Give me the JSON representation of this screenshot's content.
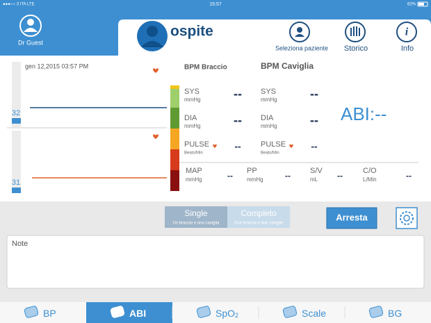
{
  "status_bar": {
    "carrier": "●●●○○ 3 ITA  LTE",
    "time": "15:57",
    "battery": "62%"
  },
  "user": {
    "name": "Dr Guest"
  },
  "patient": {
    "name": "ospite"
  },
  "toolbar": [
    {
      "label": "Seleziona paziente"
    },
    {
      "label": "Storico"
    },
    {
      "label": "Info"
    }
  ],
  "graph": {
    "timestamp": "gen 12,2015 03:57 PM",
    "arm_level": 32,
    "ankle_level": 31
  },
  "readings": {
    "columns": [
      "BPM Braccio",
      "BPM Caviglia"
    ],
    "rows": [
      {
        "label": "SYS",
        "unit": "mmHg",
        "values": [
          "--",
          "--"
        ]
      },
      {
        "label": "DIA",
        "unit": "mmHg",
        "values": [
          "--",
          "--"
        ]
      },
      {
        "label": "PULSE",
        "unit": "Beats/Min",
        "values": [
          "--",
          "--"
        ]
      }
    ],
    "abi": "ABI:--",
    "extra": [
      {
        "label": "MAP",
        "unit": "mmHg",
        "value": "--"
      },
      {
        "label": "PP",
        "unit": "mmHg",
        "value": "--"
      },
      {
        "label": "S/V",
        "unit": "mL",
        "value": "--"
      },
      {
        "label": "C/O",
        "unit": "L/Min",
        "value": "--"
      }
    ]
  },
  "mode": [
    {
      "title": "Single",
      "subtitle": "Un braccio e una caviglia"
    },
    {
      "title": "Completo",
      "subtitle": "Due braccia e due caviglie"
    }
  ],
  "stop_button": "Arresta",
  "notes": {
    "label": "Note"
  },
  "tabs": [
    {
      "label": "BP"
    },
    {
      "label": "ABI"
    },
    {
      "label": "SpO",
      "sub": "2"
    },
    {
      "label": "Scale"
    },
    {
      "label": "BG"
    }
  ]
}
